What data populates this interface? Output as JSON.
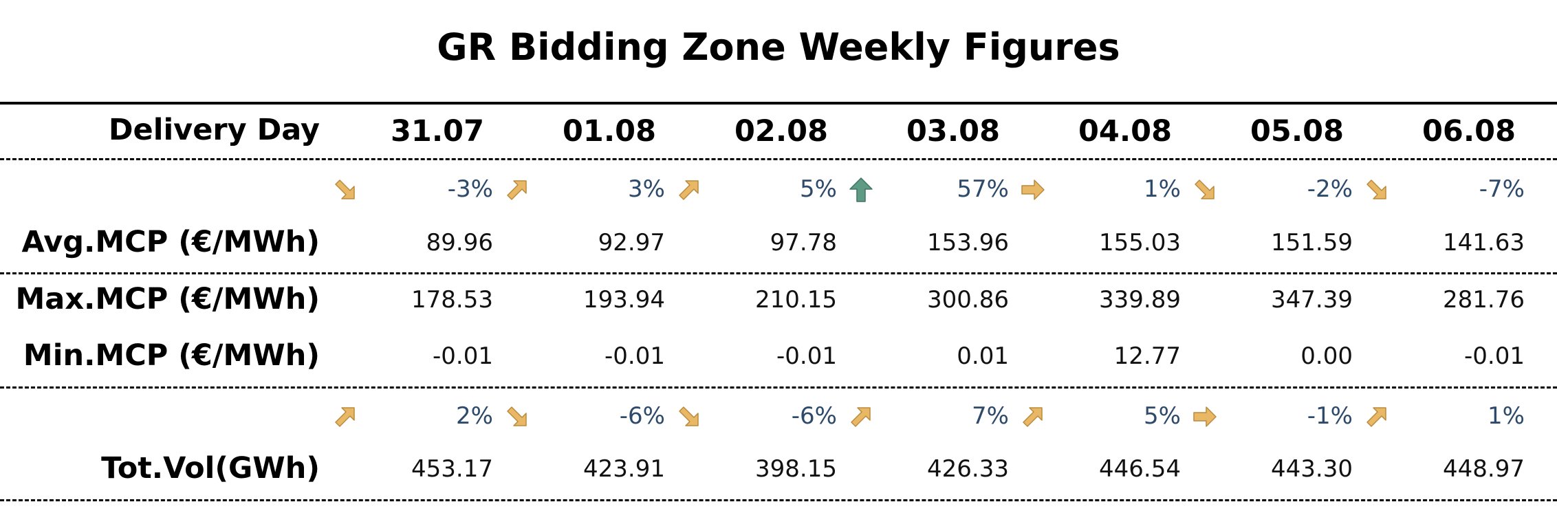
{
  "title": "GR Bidding Zone Weekly Figures",
  "header": {
    "label": "Delivery Day",
    "days": [
      "31.07",
      "01.08",
      "02.08",
      "03.08",
      "04.08",
      "05.08",
      "06.08"
    ]
  },
  "avg_change": [
    {
      "value": "-3%",
      "arrow": "arrow-down-right"
    },
    {
      "value": "3%",
      "arrow": "arrow-up-right"
    },
    {
      "value": "5%",
      "arrow": "arrow-up-right"
    },
    {
      "value": "57%",
      "arrow": "arrow-up"
    },
    {
      "value": "1%",
      "arrow": "arrow-right"
    },
    {
      "value": "-2%",
      "arrow": "arrow-down-right"
    },
    {
      "value": "-7%",
      "arrow": "arrow-down-right"
    }
  ],
  "avg_mcp": {
    "label": "Avg.MCP (€/MWh)",
    "values": [
      "89.96",
      "92.97",
      "97.78",
      "153.96",
      "155.03",
      "151.59",
      "141.63"
    ]
  },
  "max_mcp": {
    "label": "Max.MCP (€/MWh)",
    "values": [
      "178.53",
      "193.94",
      "210.15",
      "300.86",
      "339.89",
      "347.39",
      "281.76"
    ]
  },
  "min_mcp": {
    "label": "Min.MCP (€/MWh)",
    "values": [
      "-0.01",
      "-0.01",
      "-0.01",
      "0.01",
      "12.77",
      "0.00",
      "-0.01"
    ]
  },
  "vol_change": [
    {
      "value": "2%",
      "arrow": "arrow-up-right"
    },
    {
      "value": "-6%",
      "arrow": "arrow-down-right"
    },
    {
      "value": "-6%",
      "arrow": "arrow-down-right"
    },
    {
      "value": "7%",
      "arrow": "arrow-up-right"
    },
    {
      "value": "5%",
      "arrow": "arrow-up-right"
    },
    {
      "value": "-1%",
      "arrow": "arrow-right"
    },
    {
      "value": "1%",
      "arrow": "arrow-up-right"
    }
  ],
  "tot_vol": {
    "label": "Tot.Vol(GWh)",
    "values": [
      "453.17",
      "423.91",
      "398.15",
      "426.33",
      "446.54",
      "443.30",
      "448.97"
    ]
  },
  "colors": {
    "arrow_amber": "#e9b866",
    "arrow_amber_stroke": "#b98a3c",
    "arrow_green": "#5e9a84",
    "arrow_green_stroke": "#3f7460",
    "pct_text": "#2e4a6b"
  }
}
